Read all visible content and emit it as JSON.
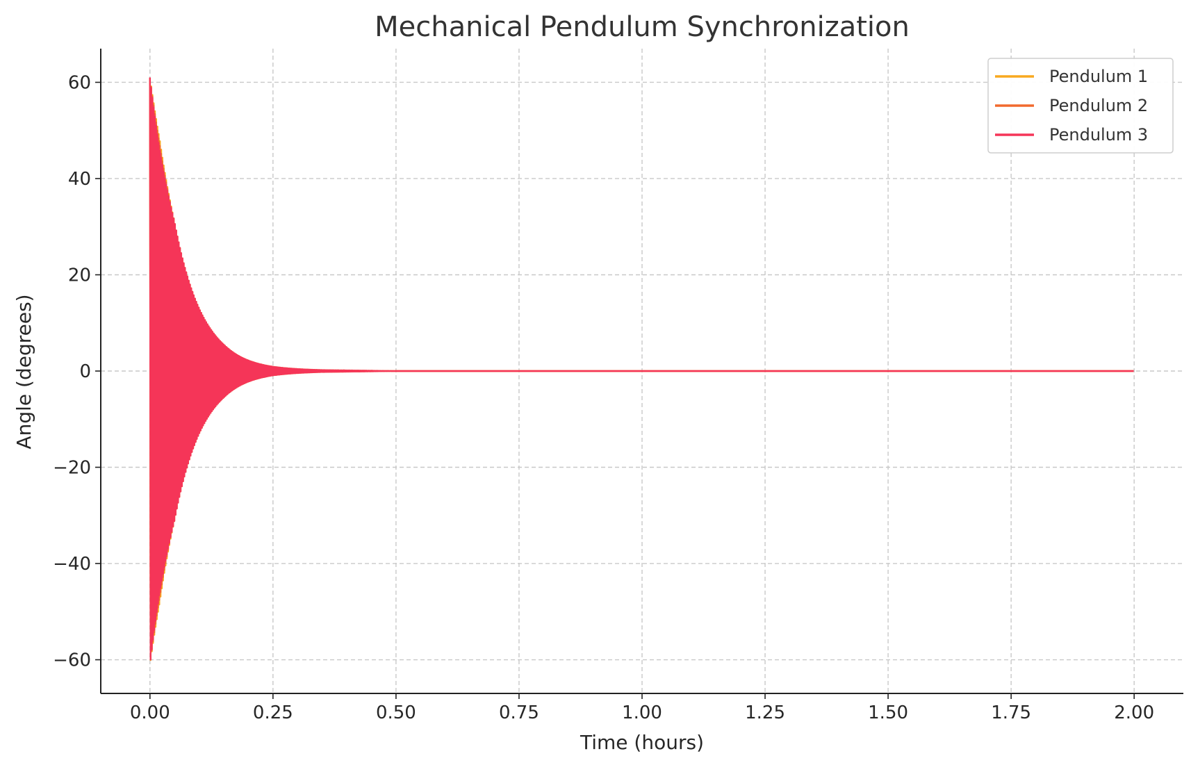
{
  "chart_data": {
    "type": "line",
    "title": "Mechanical Pendulum Synchronization",
    "xlabel": "Time (hours)",
    "ylabel": "Angle (degrees)",
    "xlim": [
      -0.1,
      2.1
    ],
    "ylim": [
      -67,
      67
    ],
    "x_ticks": [
      0.0,
      0.25,
      0.5,
      0.75,
      1.0,
      1.25,
      1.5,
      1.75,
      2.0
    ],
    "x_tick_labels": [
      "0.00",
      "0.25",
      "0.50",
      "0.75",
      "1.00",
      "1.25",
      "1.50",
      "1.75",
      "2.00"
    ],
    "y_ticks": [
      60,
      40,
      20,
      0,
      -20,
      -40,
      -60
    ],
    "y_tick_labels": [
      "60",
      "40",
      "20",
      "0",
      "−20",
      "−40",
      "−60"
    ],
    "grid": true,
    "legend_position": "top-right",
    "x_range": [
      0.0,
      2.0
    ],
    "series": [
      {
        "name": "Pendulum 1",
        "color": "#f8a91f",
        "initial_amplitude": 61,
        "envelope": [
          {
            "x": 0.0,
            "amp": 61
          },
          {
            "x": 0.02,
            "amp": 48
          },
          {
            "x": 0.05,
            "amp": 31
          },
          {
            "x": 0.1,
            "amp": 13
          },
          {
            "x": 0.15,
            "amp": 5.5
          },
          {
            "x": 0.2,
            "amp": 2.2
          },
          {
            "x": 0.25,
            "amp": 0.9
          },
          {
            "x": 0.35,
            "amp": 0.2
          },
          {
            "x": 0.5,
            "amp": 0.0
          },
          {
            "x": 2.0,
            "amp": 0.0
          }
        ]
      },
      {
        "name": "Pendulum 2",
        "color": "#f26a2e",
        "initial_amplitude": 61,
        "envelope": [
          {
            "x": 0.0,
            "amp": 61
          },
          {
            "x": 0.02,
            "amp": 47
          },
          {
            "x": 0.05,
            "amp": 31
          },
          {
            "x": 0.1,
            "amp": 13
          },
          {
            "x": 0.15,
            "amp": 5.5
          },
          {
            "x": 0.2,
            "amp": 2.2
          },
          {
            "x": 0.25,
            "amp": 0.9
          },
          {
            "x": 0.35,
            "amp": 0.2
          },
          {
            "x": 0.5,
            "amp": 0.0
          },
          {
            "x": 2.0,
            "amp": 0.0
          }
        ]
      },
      {
        "name": "Pendulum 3",
        "color": "#f53558",
        "initial_amplitude": 61,
        "envelope": [
          {
            "x": 0.0,
            "amp": 61
          },
          {
            "x": 0.02,
            "amp": 46
          },
          {
            "x": 0.05,
            "amp": 31
          },
          {
            "x": 0.1,
            "amp": 13
          },
          {
            "x": 0.15,
            "amp": 5.5
          },
          {
            "x": 0.2,
            "amp": 2.2
          },
          {
            "x": 0.25,
            "amp": 0.9
          },
          {
            "x": 0.35,
            "amp": 0.2
          },
          {
            "x": 0.5,
            "amp": 0.0
          },
          {
            "x": 2.0,
            "amp": 0.0
          }
        ]
      }
    ]
  }
}
